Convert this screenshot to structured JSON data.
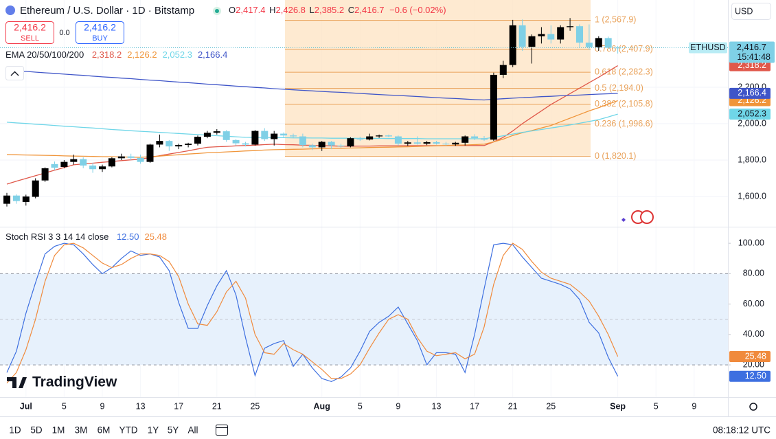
{
  "header": {
    "symbol": "Ethereum / U.S. Dollar · 1D · Bitstamp",
    "ohlc": [
      {
        "key": "O",
        "value": "2,417.4"
      },
      {
        "key": "H",
        "value": "2,426.8"
      },
      {
        "key": "L",
        "value": "2,385.2"
      },
      {
        "key": "C",
        "value": "2,416.7"
      }
    ],
    "change": "−0.6 (−0.02%)",
    "sell": {
      "price": "2,416.2",
      "label": "SELL"
    },
    "spread": "0.0",
    "buy": {
      "price": "2,416.2",
      "label": "BUY"
    },
    "currency": "USD"
  },
  "chart_data": [
    {
      "type": "candlestick",
      "categories": [
        null,
        null,
        "Jul",
        null,
        null,
        null,
        "5",
        null,
        null,
        null,
        "9",
        null,
        null,
        null,
        "13",
        null,
        null,
        null,
        "17",
        null,
        null,
        null,
        "21",
        null,
        null,
        null,
        "25",
        null,
        null,
        null,
        null,
        null,
        null,
        "Aug",
        null,
        null,
        null,
        "5",
        null,
        null,
        null,
        "9",
        null,
        null,
        null,
        "13",
        null,
        null,
        null,
        "17",
        null,
        null,
        null,
        "21",
        null,
        null,
        null,
        "25",
        null,
        null,
        null,
        null,
        null,
        null,
        "Sep",
        null,
        null,
        null,
        "5",
        null,
        null,
        null,
        "9"
      ],
      "open": [
        1560,
        1605,
        1570,
        1598,
        1688,
        1778,
        1762,
        1790,
        1805,
        1770,
        1750,
        1765,
        1810,
        1820,
        1812,
        1790,
        1885,
        1905,
        1875,
        1883,
        1890,
        1928,
        1950,
        1958,
        1910,
        1892,
        1885,
        1960,
        1915,
        1945,
        1935,
        1930,
        1882,
        1870,
        1900,
        1880,
        1875,
        1920,
        1913,
        1930,
        1935,
        1930,
        1890,
        1897,
        1890,
        1898,
        1890,
        1886,
        1895,
        1930,
        1920,
        1912,
        2268,
        2322,
        2540,
        2422,
        2480,
        2492,
        2462,
        2530,
        2535,
        2445,
        2420,
        2470,
        2417.4,
        null,
        null,
        null,
        null,
        null,
        null,
        null,
        null
      ],
      "high": [
        1620,
        1612,
        1610,
        1700,
        1760,
        1792,
        1800,
        1830,
        1815,
        1785,
        1775,
        1815,
        1835,
        1835,
        1830,
        1890,
        1940,
        1910,
        1890,
        1895,
        1935,
        1960,
        1970,
        1965,
        1915,
        1900,
        1965,
        1975,
        1960,
        1952,
        1945,
        1945,
        1890,
        1905,
        1905,
        1890,
        1925,
        1928,
        1945,
        1940,
        1940,
        1935,
        1905,
        1930,
        1905,
        1905,
        1900,
        1900,
        1935,
        1942,
        1932,
        2280,
        2345,
        2570,
        2572,
        2490,
        2530,
        2540,
        2540,
        2580,
        2545,
        2545,
        2480,
        2478,
        2426.8,
        null,
        null,
        null,
        null,
        null,
        null,
        null,
        null
      ],
      "low": [
        1545,
        1560,
        1550,
        1590,
        1680,
        1745,
        1755,
        1775,
        1755,
        1730,
        1735,
        1760,
        1800,
        1800,
        1780,
        1785,
        1870,
        1850,
        1860,
        1870,
        1880,
        1920,
        1940,
        1900,
        1880,
        1875,
        1880,
        1905,
        1880,
        1925,
        1920,
        1870,
        1855,
        1850,
        1860,
        1868,
        1870,
        1905,
        1908,
        1922,
        1925,
        1880,
        1878,
        1885,
        1882,
        1885,
        1880,
        1878,
        1880,
        1910,
        1905,
        1905,
        2250,
        2310,
        2400,
        2330,
        2440,
        2440,
        2440,
        2510,
        2420,
        2405,
        2400,
        2410,
        2385.2,
        null,
        null,
        null,
        null,
        null,
        null,
        null,
        null
      ],
      "close": [
        1605,
        1575,
        1600,
        1688,
        1755,
        1758,
        1790,
        1805,
        1770,
        1750,
        1765,
        1810,
        1820,
        1812,
        1790,
        1885,
        1905,
        1875,
        1883,
        1890,
        1928,
        1950,
        1958,
        1910,
        1892,
        1885,
        1960,
        1915,
        1945,
        1935,
        1930,
        1882,
        1870,
        1900,
        1880,
        1875,
        1920,
        1913,
        1930,
        1935,
        1930,
        1890,
        1897,
        1890,
        1898,
        1890,
        1886,
        1895,
        1930,
        1920,
        1912,
        2268,
        2322,
        2540,
        2422,
        2480,
        2492,
        2462,
        2530,
        2535,
        2445,
        2420,
        2470,
        2417.3,
        2416.7,
        null,
        null,
        null,
        null,
        null,
        null,
        null,
        null
      ],
      "up_color": "#000000",
      "down_color": "#7fd0e6",
      "ylim": [
        1434,
        2679
      ],
      "yticks": [
        {
          "value": 1600,
          "label": "1,600.0"
        },
        {
          "value": 1800,
          "label": "1,800.0"
        },
        {
          "value": 2000,
          "label": "2,000.0"
        },
        {
          "value": 2200,
          "label": "2,200.0"
        }
      ],
      "grid": true,
      "indicator_label": "EMA 20/50/100/200",
      "series": [
        {
          "color": "#e0584a",
          "last_label": "2,318.2",
          "values": [
            1668,
            1684,
            1699,
            1714,
            1729,
            1744,
            1759,
            1774,
            1779,
            1783,
            1788,
            1792,
            1797,
            1801,
            1805,
            1814,
            1824,
            1833,
            1842,
            1851,
            1861,
            1870,
            1873,
            1875,
            1878,
            1880,
            1882,
            1885,
            1887,
            1885,
            1884,
            1882,
            1881,
            1879,
            1878,
            1876,
            1876,
            1877,
            1877,
            1878,
            1878,
            1878,
            1879,
            1879,
            1879,
            1879,
            1879,
            1880,
            1880,
            1880,
            1880,
            1900,
            1925,
            1960,
            2000,
            2035,
            2070,
            2105,
            2135,
            2165,
            2195,
            2225,
            2255,
            2287,
            2318.2,
            null,
            null,
            null,
            null,
            null,
            null,
            null,
            null
          ]
        },
        {
          "color": "#f0953a",
          "last_label": "2,126.2",
          "values": [
            1830,
            1829,
            1828,
            1827,
            1826,
            1825,
            1823,
            1822,
            1821,
            1820,
            1819,
            1818,
            1817,
            1816,
            1815,
            1819,
            1822,
            1826,
            1829,
            1833,
            1836,
            1840,
            1842,
            1845,
            1847,
            1850,
            1852,
            1855,
            1857,
            1858,
            1859,
            1860,
            1862,
            1863,
            1864,
            1865,
            1866,
            1867,
            1869,
            1870,
            1871,
            1872,
            1873,
            1875,
            1877,
            1878,
            1880,
            1882,
            1883,
            1885,
            1887,
            1900,
            1915,
            1935,
            1950,
            1962,
            1976,
            1990,
            2010,
            2030,
            2050,
            2070,
            2088,
            2107,
            2126.2,
            null,
            null,
            null,
            null,
            null,
            null,
            null,
            null
          ]
        },
        {
          "color": "#6fd6e8",
          "last_label": "2,052.3",
          "values": [
            2008,
            2004,
            2001,
            1997,
            1994,
            1990,
            1986,
            1983,
            1979,
            1976,
            1972,
            1968,
            1965,
            1961,
            1958,
            1955,
            1952,
            1949,
            1946,
            1943,
            1940,
            1937,
            1934,
            1931,
            1928,
            1925,
            1924,
            1924,
            1923,
            1923,
            1922,
            1922,
            1921,
            1921,
            1920,
            1920,
            1920,
            1919,
            1919,
            1919,
            1918,
            1918,
            1918,
            1918,
            1917,
            1917,
            1917,
            1917,
            1917,
            1917,
            1917,
            1925,
            1933,
            1943,
            1952,
            1960,
            1968,
            1976,
            1984,
            1993,
            2002,
            2012,
            2022,
            2037,
            2052.3,
            null,
            null,
            null,
            null,
            null,
            null,
            null,
            null
          ]
        },
        {
          "color": "#3f55c8",
          "last_label": "2,166.4",
          "values": [
            2294,
            2290,
            2287,
            2283,
            2279,
            2276,
            2272,
            2268,
            2265,
            2261,
            2257,
            2254,
            2250,
            2247,
            2243,
            2239,
            2236,
            2232,
            2228,
            2225,
            2221,
            2217,
            2214,
            2210,
            2206,
            2203,
            2199,
            2196,
            2192,
            2189,
            2186,
            2183,
            2180,
            2177,
            2174,
            2172,
            2169,
            2166,
            2163,
            2160,
            2157,
            2155,
            2152,
            2149,
            2146,
            2143,
            2140,
            2138,
            2135,
            2132,
            2130,
            2134,
            2137,
            2140,
            2143,
            2145,
            2148,
            2150,
            2153,
            2155,
            2157,
            2160,
            2162,
            2164,
            2166.4,
            null,
            null,
            null,
            null,
            null,
            null,
            null,
            null
          ]
        }
      ],
      "fib_levels": [
        {
          "value": 2567.9,
          "label": "1 (2,567.9)"
        },
        {
          "value": 2407.9,
          "label": "0.786 (2,407.9)"
        },
        {
          "value": 2282.3,
          "label": "0.618 (2,282.3)"
        },
        {
          "value": 2194.0,
          "label": "0.5 (2,194.0)"
        },
        {
          "value": 2105.8,
          "label": "0.382 (2,105.8)"
        },
        {
          "value": 1996.6,
          "label": "0.236 (1,996.6)"
        },
        {
          "value": 1820.1,
          "label": "0 (1,820.1)"
        }
      ],
      "fib_color": "#e9a25a",
      "symbol_tag": "ETHUSD",
      "last_price_label": "2,416.7",
      "countdown": "15:41:48"
    },
    {
      "type": "line",
      "title": "Stoch RSI 3 3 14 14 close",
      "ylim": [
        -1.2,
        110
      ],
      "yticks": [
        {
          "value": 20,
          "label": "20.00"
        },
        {
          "value": 40,
          "label": "40.00"
        },
        {
          "value": 60,
          "label": "60.00"
        },
        {
          "value": 80,
          "label": "80.00"
        },
        {
          "value": 100,
          "label": "100.00"
        }
      ],
      "hlines": [
        80,
        50,
        20
      ],
      "series": [
        {
          "color": "#3d6fe0",
          "last_label": "12.50",
          "values": [
            15,
            29,
            54,
            74,
            93,
            98,
            100,
            99,
            93,
            86,
            80,
            84,
            90,
            95,
            92,
            93,
            91,
            82,
            61,
            44,
            44,
            59,
            72,
            82,
            66,
            38,
            13,
            31,
            34,
            36,
            19,
            27,
            18,
            11,
            9,
            12,
            18,
            29,
            42,
            48,
            52,
            58,
            47,
            36,
            20,
            28,
            28,
            27,
            15,
            40,
            70,
            99,
            100,
            99,
            91,
            84,
            77,
            75,
            73,
            70,
            63,
            48,
            41,
            25,
            12.5,
            null,
            null,
            null,
            null,
            null,
            null,
            null,
            null
          ]
        },
        {
          "color": "#f08a3c",
          "last_label": "25.48",
          "values": [
            8,
            15,
            30,
            50,
            75,
            92,
            99,
            100,
            97,
            92,
            87,
            84,
            86,
            90,
            93,
            93,
            92,
            88,
            78,
            60,
            47,
            46,
            55,
            68,
            75,
            64,
            40,
            28,
            27,
            34,
            30,
            27,
            22,
            17,
            11,
            11,
            14,
            20,
            31,
            41,
            50,
            53,
            50,
            38,
            29,
            26,
            27,
            28,
            24,
            27,
            45,
            73,
            92,
            100,
            96,
            88,
            81,
            77,
            75,
            73,
            68,
            62,
            52,
            40,
            25.48,
            null,
            null,
            null,
            null,
            null,
            null,
            null,
            null
          ]
        }
      ]
    }
  ],
  "watermark": "TradingView",
  "toolbar": {
    "ranges": [
      "1D",
      "5D",
      "1M",
      "3M",
      "6M",
      "YTD",
      "1Y",
      "5Y",
      "All"
    ],
    "clock": "08:18:12 UTC"
  }
}
